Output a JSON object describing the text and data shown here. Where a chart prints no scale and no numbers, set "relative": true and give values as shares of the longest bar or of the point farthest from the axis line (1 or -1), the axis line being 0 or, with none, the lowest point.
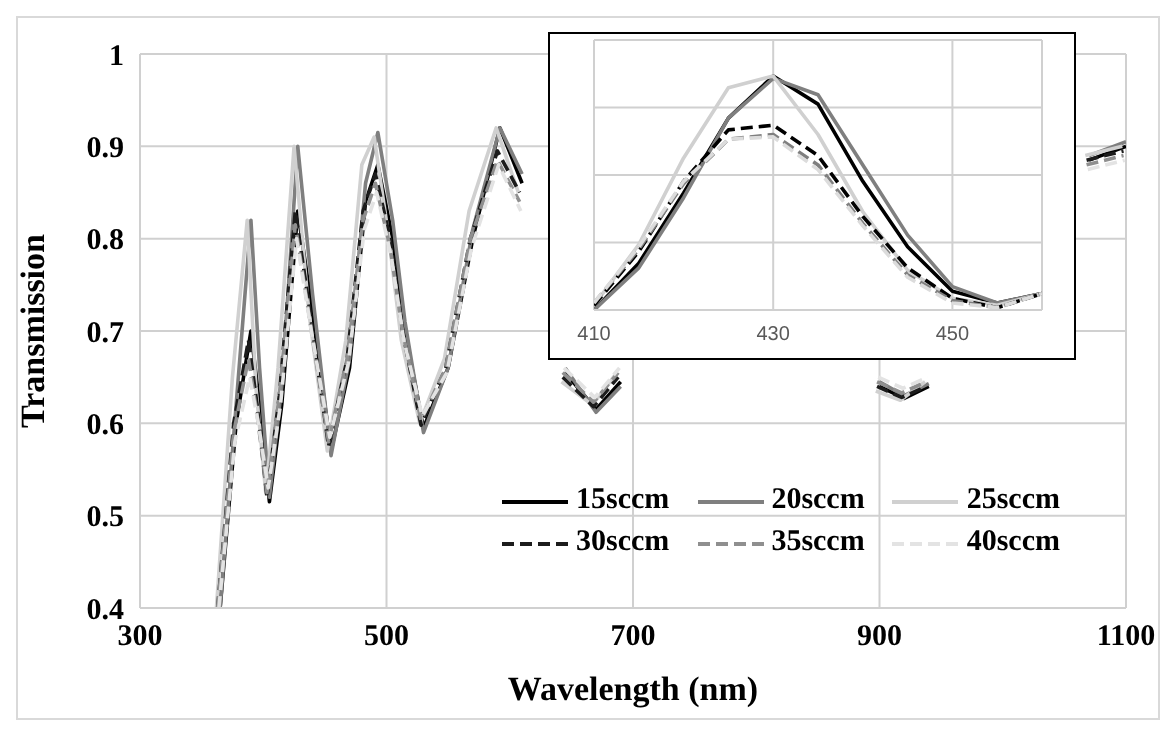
{
  "chart_data": [
    {
      "type": "line",
      "xlabel": "Wavelength (nm)",
      "ylabel": "Transmission",
      "x": [
        365,
        378,
        390,
        397,
        405,
        415,
        428,
        440,
        455,
        470,
        483,
        493,
        505,
        515,
        530,
        550,
        570,
        592,
        610,
        620,
        645,
        670,
        690,
        700,
        900,
        920,
        940,
        1000,
        1070,
        1100
      ],
      "series": [
        {
          "name": "15sccm",
          "color": "#000000",
          "line_style": "solid",
          "values": [
            0.4,
            0.6,
            0.7,
            0.62,
            0.515,
            0.62,
            0.83,
            0.72,
            0.57,
            0.66,
            0.84,
            0.88,
            0.8,
            0.7,
            0.595,
            0.66,
            0.8,
            0.92,
            0.86,
            null,
            0.655,
            0.615,
            0.645,
            null,
            0.64,
            0.627,
            0.64,
            null,
            0.885,
            0.9
          ]
        },
        {
          "name": "20sccm",
          "color": "#7f7f7f",
          "line_style": "solid",
          "values": [
            0.4,
            0.62,
            0.82,
            0.66,
            0.52,
            0.64,
            0.9,
            0.74,
            0.565,
            0.67,
            0.86,
            0.915,
            0.82,
            0.71,
            0.59,
            0.66,
            0.81,
            0.92,
            0.87,
            null,
            0.66,
            0.612,
            0.64,
            null,
            0.645,
            0.63,
            0.643,
            null,
            0.89,
            0.905
          ]
        },
        {
          "name": "25sccm",
          "color": "#d0d0d0",
          "line_style": "solid",
          "x": [
            362,
            375,
            387,
            394,
            402,
            412,
            425,
            437,
            452,
            467,
            480,
            490,
            502,
            512,
            527,
            547,
            567,
            589,
            607,
            617,
            642,
            667,
            687,
            697,
            897,
            917,
            937,
            997,
            1067,
            1097
          ],
          "values": [
            0.4,
            0.65,
            0.82,
            0.64,
            0.525,
            0.66,
            0.9,
            0.72,
            0.57,
            0.69,
            0.88,
            0.91,
            0.8,
            0.69,
            0.6,
            0.67,
            0.83,
            0.92,
            0.85,
            null,
            0.645,
            0.62,
            0.655,
            null,
            0.635,
            0.625,
            0.645,
            null,
            0.89,
            0.9
          ]
        },
        {
          "name": "30sccm",
          "color": "#1c1c1c",
          "line_style": "dashed",
          "x": [
            363,
            376,
            388,
            395,
            403,
            413,
            426,
            438,
            453,
            468,
            481,
            491,
            503,
            513,
            528,
            548,
            568,
            590,
            608,
            618,
            643,
            668,
            688,
            698,
            898,
            918,
            938,
            998,
            1068,
            1098
          ],
          "values": [
            0.4,
            0.6,
            0.69,
            0.62,
            0.52,
            0.63,
            0.83,
            0.72,
            0.575,
            0.67,
            0.83,
            0.87,
            0.8,
            0.7,
            0.598,
            0.66,
            0.8,
            0.895,
            0.85,
            null,
            0.65,
            0.618,
            0.65,
            null,
            0.64,
            0.628,
            0.64,
            null,
            0.885,
            0.895
          ]
        },
        {
          "name": "35sccm",
          "color": "#8f8f8f",
          "line_style": "dashed",
          "x": [
            363,
            376,
            388,
            395,
            403,
            413,
            426,
            438,
            453,
            468,
            481,
            491,
            503,
            513,
            528,
            548,
            568,
            590,
            608,
            618,
            643,
            668,
            688,
            698,
            898,
            918,
            938,
            998,
            1068,
            1098
          ],
          "values": [
            0.4,
            0.59,
            0.67,
            0.61,
            0.525,
            0.63,
            0.815,
            0.71,
            0.58,
            0.67,
            0.82,
            0.86,
            0.79,
            0.7,
            0.603,
            0.66,
            0.8,
            0.885,
            0.84,
            null,
            0.655,
            0.623,
            0.655,
            null,
            0.645,
            0.633,
            0.645,
            null,
            0.88,
            0.89
          ]
        },
        {
          "name": "40sccm",
          "color": "#e3e3e3",
          "line_style": "dashed",
          "x": [
            364,
            377,
            389,
            396,
            404,
            414,
            427,
            439,
            454,
            469,
            482,
            492,
            504,
            514,
            529,
            549,
            569,
            591,
            609,
            619,
            644,
            669,
            689,
            699,
            899,
            919,
            939,
            999,
            1069,
            1099
          ],
          "values": [
            0.4,
            0.58,
            0.65,
            0.6,
            0.53,
            0.62,
            0.8,
            0.7,
            0.585,
            0.665,
            0.81,
            0.85,
            0.78,
            0.69,
            0.608,
            0.655,
            0.79,
            0.88,
            0.83,
            null,
            0.66,
            0.628,
            0.66,
            null,
            0.65,
            0.638,
            0.65,
            null,
            0.875,
            0.885
          ]
        }
      ],
      "xlim": [
        300,
        1100
      ],
      "xticks": [
        300,
        500,
        700,
        900,
        1100
      ],
      "ylim": [
        0.4,
        1
      ],
      "yticks": [
        0.4,
        0.5,
        0.6,
        0.7,
        0.8,
        0.9,
        1
      ],
      "grid": true,
      "legend": "bottom right",
      "marker": "none"
    },
    {
      "type": "line",
      "relative": true,
      "x": [
        410,
        415,
        420,
        425,
        430,
        435,
        440,
        445,
        450,
        455,
        460
      ],
      "series": [
        {
          "color": "#000000",
          "line_style": "solid",
          "values": [
            0,
            0.2,
            0.5,
            0.82,
            1.0,
            0.88,
            0.55,
            0.27,
            0.08,
            0.03,
            0.07
          ]
        },
        {
          "color": "#7f7f7f",
          "line_style": "solid",
          "values": [
            0,
            0.18,
            0.48,
            0.82,
            0.99,
            0.92,
            0.62,
            0.32,
            0.1,
            0.03,
            0.07
          ]
        },
        {
          "color": "#d0d0d0",
          "line_style": "solid",
          "values": [
            0.02,
            0.28,
            0.65,
            0.95,
            1.0,
            0.75,
            0.42,
            0.17,
            0.05,
            0.02,
            0.07
          ]
        },
        {
          "color": "#000000",
          "line_style": "dashed",
          "values": [
            0.02,
            0.25,
            0.55,
            0.77,
            0.79,
            0.66,
            0.4,
            0.18,
            0.05,
            0.01,
            0.07
          ]
        },
        {
          "color": "#7f7f7f",
          "line_style": "dashed",
          "values": [
            0.03,
            0.26,
            0.54,
            0.73,
            0.75,
            0.62,
            0.37,
            0.15,
            0.04,
            0.01,
            0.07
          ]
        },
        {
          "color": "#dcdcdc",
          "line_style": "dashed",
          "values": [
            0.03,
            0.27,
            0.55,
            0.73,
            0.74,
            0.6,
            0.36,
            0.14,
            0.03,
            0.01,
            0.07
          ]
        }
      ],
      "xlim": [
        410,
        460
      ],
      "xticks": [
        410,
        430,
        450
      ],
      "grid": true,
      "marker": "none"
    }
  ]
}
